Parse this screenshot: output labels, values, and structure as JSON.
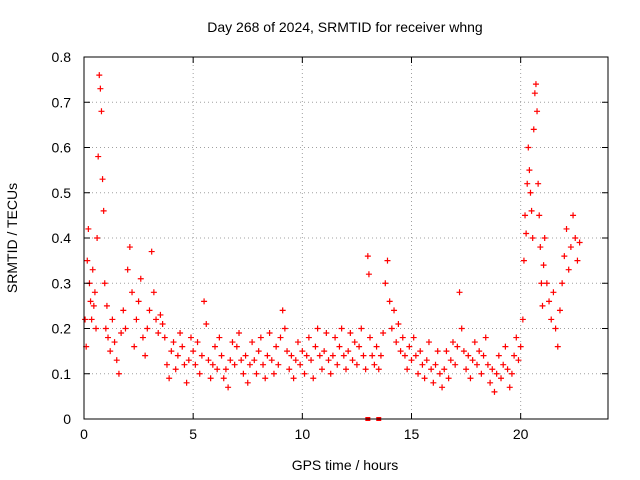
{
  "chart_data": {
    "type": "scatter",
    "title": "Day 268 of 2024, SRMTID for receiver whng",
    "xlabel": "GPS time / hours",
    "ylabel": "SRMTID / TECUs",
    "xlim": [
      0,
      24
    ],
    "ylim": [
      0,
      0.8
    ],
    "x_ticks": [
      0,
      5,
      10,
      15,
      20
    ],
    "x_tick_labels": [
      "0",
      "5",
      "10",
      "15",
      "20"
    ],
    "y_ticks": [
      0,
      0.1,
      0.2,
      0.3,
      0.4,
      0.5,
      0.6,
      0.7,
      0.8
    ],
    "y_tick_labels": [
      "0",
      "0.1",
      "0.2",
      "0.3",
      "0.4",
      "0.5",
      "0.6",
      "0.7",
      "0.8"
    ],
    "grid": true,
    "marker": "+",
    "colors": {
      "series": "#ff0000",
      "grid": "#a0a0a0",
      "axis": "#000000"
    },
    "series": [
      {
        "name": "SRMTID",
        "points": [
          [
            0.05,
            0.22
          ],
          [
            0.1,
            0.16
          ],
          [
            0.15,
            0.35
          ],
          [
            0.2,
            0.42
          ],
          [
            0.25,
            0.3
          ],
          [
            0.3,
            0.26
          ],
          [
            0.35,
            0.22
          ],
          [
            0.4,
            0.33
          ],
          [
            0.45,
            0.25
          ],
          [
            0.5,
            0.28
          ],
          [
            0.55,
            0.2
          ],
          [
            0.6,
            0.4
          ],
          [
            0.65,
            0.58
          ],
          [
            0.7,
            0.76
          ],
          [
            0.75,
            0.73
          ],
          [
            0.8,
            0.68
          ],
          [
            0.85,
            0.53
          ],
          [
            0.9,
            0.46
          ],
          [
            0.95,
            0.3
          ],
          [
            1.0,
            0.2
          ],
          [
            1.05,
            0.25
          ],
          [
            1.1,
            0.18
          ],
          [
            1.2,
            0.15
          ],
          [
            1.3,
            0.22
          ],
          [
            1.4,
            0.17
          ],
          [
            1.5,
            0.13
          ],
          [
            1.6,
            0.1
          ],
          [
            1.7,
            0.19
          ],
          [
            1.8,
            0.24
          ],
          [
            1.9,
            0.2
          ],
          [
            2.0,
            0.33
          ],
          [
            2.1,
            0.38
          ],
          [
            2.2,
            0.28
          ],
          [
            2.3,
            0.16
          ],
          [
            2.4,
            0.22
          ],
          [
            2.5,
            0.26
          ],
          [
            2.6,
            0.31
          ],
          [
            2.7,
            0.18
          ],
          [
            2.8,
            0.14
          ],
          [
            2.9,
            0.2
          ],
          [
            3.0,
            0.24
          ],
          [
            3.1,
            0.37
          ],
          [
            3.2,
            0.28
          ],
          [
            3.3,
            0.22
          ],
          [
            3.4,
            0.19
          ],
          [
            3.5,
            0.23
          ],
          [
            3.6,
            0.21
          ],
          [
            3.7,
            0.18
          ],
          [
            3.8,
            0.12
          ],
          [
            3.9,
            0.09
          ],
          [
            4.0,
            0.15
          ],
          [
            4.1,
            0.17
          ],
          [
            4.2,
            0.11
          ],
          [
            4.3,
            0.14
          ],
          [
            4.4,
            0.19
          ],
          [
            4.5,
            0.16
          ],
          [
            4.6,
            0.12
          ],
          [
            4.7,
            0.08
          ],
          [
            4.8,
            0.13
          ],
          [
            4.9,
            0.18
          ],
          [
            5.0,
            0.15
          ],
          [
            5.1,
            0.12
          ],
          [
            5.2,
            0.17
          ],
          [
            5.3,
            0.1
          ],
          [
            5.4,
            0.14
          ],
          [
            5.5,
            0.26
          ],
          [
            5.6,
            0.21
          ],
          [
            5.7,
            0.13
          ],
          [
            5.8,
            0.09
          ],
          [
            5.9,
            0.12
          ],
          [
            6.0,
            0.16
          ],
          [
            6.1,
            0.11
          ],
          [
            6.2,
            0.18
          ],
          [
            6.3,
            0.14
          ],
          [
            6.4,
            0.09
          ],
          [
            6.5,
            0.11
          ],
          [
            6.6,
            0.07
          ],
          [
            6.7,
            0.13
          ],
          [
            6.8,
            0.17
          ],
          [
            6.9,
            0.12
          ],
          [
            7.0,
            0.16
          ],
          [
            7.1,
            0.19
          ],
          [
            7.2,
            0.13
          ],
          [
            7.3,
            0.1
          ],
          [
            7.4,
            0.14
          ],
          [
            7.5,
            0.08
          ],
          [
            7.6,
            0.12
          ],
          [
            7.7,
            0.17
          ],
          [
            7.8,
            0.13
          ],
          [
            7.9,
            0.1
          ],
          [
            8.0,
            0.15
          ],
          [
            8.1,
            0.18
          ],
          [
            8.2,
            0.12
          ],
          [
            8.3,
            0.09
          ],
          [
            8.4,
            0.14
          ],
          [
            8.5,
            0.19
          ],
          [
            8.6,
            0.13
          ],
          [
            8.7,
            0.1
          ],
          [
            8.8,
            0.16
          ],
          [
            8.9,
            0.12
          ],
          [
            9.0,
            0.18
          ],
          [
            9.1,
            0.24
          ],
          [
            9.2,
            0.2
          ],
          [
            9.3,
            0.15
          ],
          [
            9.4,
            0.11
          ],
          [
            9.5,
            0.14
          ],
          [
            9.6,
            0.09
          ],
          [
            9.7,
            0.13
          ],
          [
            9.8,
            0.17
          ],
          [
            9.9,
            0.12
          ],
          [
            10.0,
            0.15
          ],
          [
            10.1,
            0.1
          ],
          [
            10.2,
            0.14
          ],
          [
            10.3,
            0.18
          ],
          [
            10.4,
            0.13
          ],
          [
            10.5,
            0.09
          ],
          [
            10.6,
            0.16
          ],
          [
            10.7,
            0.2
          ],
          [
            10.8,
            0.14
          ],
          [
            10.9,
            0.11
          ],
          [
            11.0,
            0.15
          ],
          [
            11.1,
            0.19
          ],
          [
            11.2,
            0.13
          ],
          [
            11.3,
            0.1
          ],
          [
            11.4,
            0.14
          ],
          [
            11.5,
            0.18
          ],
          [
            11.6,
            0.12
          ],
          [
            11.7,
            0.16
          ],
          [
            11.8,
            0.2
          ],
          [
            11.9,
            0.14
          ],
          [
            12.0,
            0.11
          ],
          [
            12.1,
            0.15
          ],
          [
            12.2,
            0.19
          ],
          [
            12.3,
            0.13
          ],
          [
            12.4,
            0.17
          ],
          [
            12.5,
            0.12
          ],
          [
            12.6,
            0.16
          ],
          [
            12.7,
            0.2
          ],
          [
            12.8,
            0.14
          ],
          [
            12.9,
            0.11
          ],
          [
            13.0,
            0.36
          ],
          [
            13.05,
            0.32
          ],
          [
            13.1,
            0.18
          ],
          [
            13.2,
            0.14
          ],
          [
            13.3,
            0.12
          ],
          [
            13.4,
            0.16
          ],
          [
            13.5,
            0.11
          ],
          [
            13.6,
            0.14
          ],
          [
            13.7,
            0.19
          ],
          [
            13.8,
            0.3
          ],
          [
            13.9,
            0.35
          ],
          [
            14.0,
            0.26
          ],
          [
            14.1,
            0.2
          ],
          [
            14.2,
            0.24
          ],
          [
            14.3,
            0.17
          ],
          [
            14.4,
            0.21
          ],
          [
            14.5,
            0.15
          ],
          [
            14.6,
            0.18
          ],
          [
            14.7,
            0.14
          ],
          [
            14.8,
            0.11
          ],
          [
            14.9,
            0.16
          ],
          [
            15.0,
            0.13
          ],
          [
            15.1,
            0.18
          ],
          [
            15.2,
            0.14
          ],
          [
            15.3,
            0.1
          ],
          [
            15.4,
            0.15
          ],
          [
            15.5,
            0.12
          ],
          [
            15.6,
            0.09
          ],
          [
            15.7,
            0.13
          ],
          [
            15.8,
            0.17
          ],
          [
            15.9,
            0.11
          ],
          [
            16.0,
            0.08
          ],
          [
            16.1,
            0.12
          ],
          [
            16.2,
            0.15
          ],
          [
            16.3,
            0.1
          ],
          [
            16.4,
            0.07
          ],
          [
            16.5,
            0.11
          ],
          [
            16.6,
            0.15
          ],
          [
            16.7,
            0.09
          ],
          [
            16.8,
            0.13
          ],
          [
            16.9,
            0.17
          ],
          [
            17.0,
            0.12
          ],
          [
            17.1,
            0.16
          ],
          [
            17.2,
            0.28
          ],
          [
            17.3,
            0.2
          ],
          [
            17.4,
            0.15
          ],
          [
            17.5,
            0.11
          ],
          [
            17.6,
            0.14
          ],
          [
            17.7,
            0.09
          ],
          [
            17.8,
            0.13
          ],
          [
            17.9,
            0.17
          ],
          [
            18.0,
            0.12
          ],
          [
            18.1,
            0.15
          ],
          [
            18.2,
            0.1
          ],
          [
            18.3,
            0.14
          ],
          [
            18.4,
            0.18
          ],
          [
            18.5,
            0.12
          ],
          [
            18.6,
            0.08
          ],
          [
            18.7,
            0.11
          ],
          [
            18.8,
            0.06
          ],
          [
            18.9,
            0.1
          ],
          [
            19.0,
            0.14
          ],
          [
            19.1,
            0.09
          ],
          [
            19.2,
            0.12
          ],
          [
            19.3,
            0.16
          ],
          [
            19.4,
            0.11
          ],
          [
            19.5,
            0.07
          ],
          [
            19.6,
            0.1
          ],
          [
            19.7,
            0.14
          ],
          [
            19.8,
            0.18
          ],
          [
            19.9,
            0.13
          ],
          [
            20.0,
            0.16
          ],
          [
            20.1,
            0.22
          ],
          [
            20.15,
            0.35
          ],
          [
            20.2,
            0.45
          ],
          [
            20.25,
            0.41
          ],
          [
            20.3,
            0.52
          ],
          [
            20.35,
            0.6
          ],
          [
            20.4,
            0.55
          ],
          [
            20.45,
            0.5
          ],
          [
            20.5,
            0.46
          ],
          [
            20.55,
            0.4
          ],
          [
            20.6,
            0.64
          ],
          [
            20.65,
            0.72
          ],
          [
            20.7,
            0.74
          ],
          [
            20.75,
            0.68
          ],
          [
            20.8,
            0.52
          ],
          [
            20.85,
            0.45
          ],
          [
            20.9,
            0.38
          ],
          [
            20.95,
            0.3
          ],
          [
            21.0,
            0.25
          ],
          [
            21.05,
            0.34
          ],
          [
            21.1,
            0.4
          ],
          [
            21.2,
            0.3
          ],
          [
            21.3,
            0.26
          ],
          [
            21.4,
            0.22
          ],
          [
            21.5,
            0.28
          ],
          [
            21.6,
            0.2
          ],
          [
            21.7,
            0.16
          ],
          [
            21.8,
            0.24
          ],
          [
            21.9,
            0.3
          ],
          [
            22.0,
            0.36
          ],
          [
            22.1,
            0.42
          ],
          [
            22.2,
            0.33
          ],
          [
            22.3,
            0.38
          ],
          [
            22.4,
            0.45
          ],
          [
            22.5,
            0.4
          ],
          [
            22.6,
            0.35
          ],
          [
            22.7,
            0.39
          ]
        ]
      }
    ],
    "zero_markers": [
      13.0,
      13.5
    ]
  }
}
